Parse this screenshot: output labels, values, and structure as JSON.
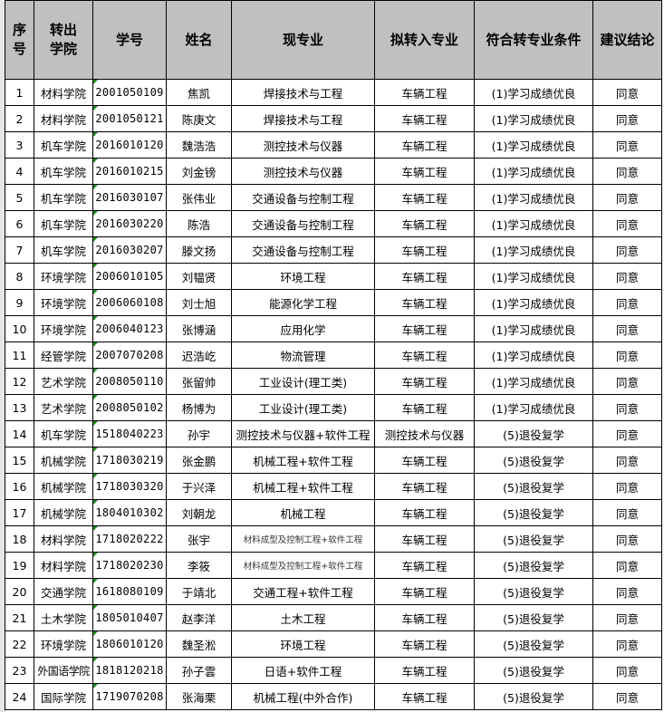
{
  "header": {
    "seq": "序\n号",
    "seq_l1": "序",
    "seq_l2": "号",
    "college_l1": "转出",
    "college_l2": "学院",
    "student_id": "学号",
    "name": "姓名",
    "current_major": "现专业",
    "target_major": "拟转入专业",
    "condition": "符合转专业条件",
    "conclusion": "建议结论"
  },
  "colors": {
    "header_bg": "#c0c0c0",
    "id_marker": "#1e8c1e"
  },
  "rows": [
    {
      "no": "1",
      "college": "材料学院",
      "id": "2001050109",
      "name": "焦凯",
      "major": "焊接技术与工程",
      "target": "车辆工程",
      "cond": "(1)学习成绩优良",
      "result": "同意"
    },
    {
      "no": "2",
      "college": "材料学院",
      "id": "2001050121",
      "name": "陈庚文",
      "major": "焊接技术与工程",
      "target": "车辆工程",
      "cond": "(1)学习成绩优良",
      "result": "同意"
    },
    {
      "no": "3",
      "college": "机车学院",
      "id": "2016010120",
      "name": "魏浩浩",
      "major": "测控技术与仪器",
      "target": "车辆工程",
      "cond": "(1)学习成绩优良",
      "result": "同意"
    },
    {
      "no": "4",
      "college": "机车学院",
      "id": "2016010215",
      "name": "刘金镑",
      "major": "测控技术与仪器",
      "target": "车辆工程",
      "cond": "(1)学习成绩优良",
      "result": "同意"
    },
    {
      "no": "5",
      "college": "机车学院",
      "id": "2016030107",
      "name": "张伟业",
      "major": "交通设备与控制工程",
      "target": "车辆工程",
      "cond": "(1)学习成绩优良",
      "result": "同意"
    },
    {
      "no": "6",
      "college": "机车学院",
      "id": "2016030220",
      "name": "陈浩",
      "major": "交通设备与控制工程",
      "target": "车辆工程",
      "cond": "(1)学习成绩优良",
      "result": "同意"
    },
    {
      "no": "7",
      "college": "机车学院",
      "id": "2016030207",
      "name": "滕文扬",
      "major": "交通设备与控制工程",
      "target": "车辆工程",
      "cond": "(1)学习成绩优良",
      "result": "同意"
    },
    {
      "no": "8",
      "college": "环境学院",
      "id": "2006010105",
      "name": "刘韫贤",
      "major": "环境工程",
      "target": "车辆工程",
      "cond": "(1)学习成绩优良",
      "result": "同意"
    },
    {
      "no": "9",
      "college": "环境学院",
      "id": "2006060108",
      "name": "刘士旭",
      "major": "能源化学工程",
      "target": "车辆工程",
      "cond": "(1)学习成绩优良",
      "result": "同意"
    },
    {
      "no": "10",
      "college": "环境学院",
      "id": "2006040123",
      "name": "张博涵",
      "major": "应用化学",
      "target": "车辆工程",
      "cond": "(1)学习成绩优良",
      "result": "同意"
    },
    {
      "no": "11",
      "college": "经管学院",
      "id": "2007070208",
      "name": "迟浩屹",
      "major": "物流管理",
      "target": "车辆工程",
      "cond": "(1)学习成绩优良",
      "result": "同意"
    },
    {
      "no": "12",
      "college": "艺术学院",
      "id": "2008050110",
      "name": "张留帅",
      "major": "工业设计(理工类)",
      "target": "车辆工程",
      "cond": "(1)学习成绩优良",
      "result": "同意"
    },
    {
      "no": "13",
      "college": "艺术学院",
      "id": "2008050102",
      "name": "杨博为",
      "major": "工业设计(理工类)",
      "target": "车辆工程",
      "cond": "(1)学习成绩优良",
      "result": "同意"
    },
    {
      "no": "14",
      "college": "机车学院",
      "id": "1518040223",
      "name": "孙宇",
      "major": "测控技术与仪器+软件工程",
      "target": "测控技术与仪器",
      "cond": "(5)退役复学",
      "result": "同意"
    },
    {
      "no": "15",
      "college": "机械学院",
      "id": "1718030219",
      "name": "张金鹏",
      "major": "机械工程+软件工程",
      "target": "车辆工程",
      "cond": "(5)退役复学",
      "result": "同意"
    },
    {
      "no": "16",
      "college": "机械学院",
      "id": "1718030320",
      "name": "于兴泽",
      "major": "机械工程+软件工程",
      "target": "车辆工程",
      "cond": "(5)退役复学",
      "result": "同意"
    },
    {
      "no": "17",
      "college": "机械学院",
      "id": "1804010302",
      "name": "刘朝龙",
      "major": "机械工程",
      "target": "车辆工程",
      "cond": "(5)退役复学",
      "result": "同意"
    },
    {
      "no": "18",
      "college": "材料学院",
      "id": "1718020222",
      "name": "张宇",
      "major": "材料成型及控制工程+软件工程",
      "target": "车辆工程",
      "cond": "(5)退役复学",
      "result": "同意"
    },
    {
      "no": "19",
      "college": "材料学院",
      "id": "1718020230",
      "name": "李筱",
      "major": "材料成型及控制工程+软件工程",
      "target": "车辆工程",
      "cond": "(5)退役复学",
      "result": "同意"
    },
    {
      "no": "20",
      "college": "交通学院",
      "id": "1618080109",
      "name": "于靖北",
      "major": "交通工程+软件工程",
      "target": "车辆工程",
      "cond": "(5)退役复学",
      "result": "同意"
    },
    {
      "no": "21",
      "college": "土木学院",
      "id": "1805010407",
      "name": "赵李洋",
      "major": "土木工程",
      "target": "车辆工程",
      "cond": "(5)退役复学",
      "result": "同意"
    },
    {
      "no": "22",
      "college": "环境学院",
      "id": "1806010120",
      "name": "魏圣淞",
      "major": "环境工程",
      "target": "车辆工程",
      "cond": "(5)退役复学",
      "result": "同意"
    },
    {
      "no": "23",
      "college": "外国语学院",
      "id": "1818120218",
      "name": "孙子雲",
      "major": "日语+软件工程",
      "target": "车辆工程",
      "cond": "(5)退役复学",
      "result": "同意"
    },
    {
      "no": "24",
      "college": "国际学院",
      "id": "1719070208",
      "name": "张海栗",
      "major": "机械工程(中外合作)",
      "target": "车辆工程",
      "cond": "(5)退役复学",
      "result": "同意"
    }
  ]
}
